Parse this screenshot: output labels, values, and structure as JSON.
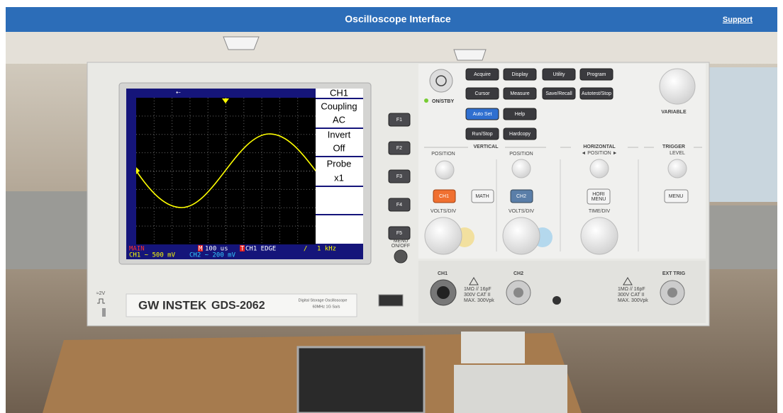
{
  "header": {
    "title": "Oscilloscope Interface",
    "link": "Support"
  },
  "screen": {
    "menu": [
      "CH1",
      "Coupling",
      "AC",
      "Invert",
      "Off",
      "Probe",
      "x1"
    ],
    "status": {
      "mode": "MAIN",
      "timebase_marker": "M",
      "timebase": "100 us",
      "trigger_marker": "T",
      "trigger": "CH1 EDGE",
      "slope": "/",
      "frequency": "1 kHz",
      "ch1": "CH1 ~ 500 mV",
      "ch2": "CH2 ~ 200 mV"
    }
  },
  "function_keys": [
    "F1",
    "F2",
    "F3",
    "F4",
    "F5"
  ],
  "menu_key": [
    "MENU",
    "ON/OFF"
  ],
  "brand": {
    "logo": "GW INSTEK",
    "model": "GDS-2062",
    "description": "Digital Storage Oscilloscope",
    "spec": "60MHz 1G Sa/s"
  },
  "probe_comp": "≈2V",
  "power": "ON/STBY",
  "buttons": [
    "Acquire",
    "Display",
    "Utility",
    "Program",
    "Cursor",
    "Measure",
    "Save/Recall",
    "Autotest/Stop",
    "Auto Set",
    "Help",
    "Run/Stop",
    "Hardcopy"
  ],
  "variable": "VARIABLE",
  "vertical": {
    "title": "VERTICAL",
    "position_left": "POSITION",
    "position_right": "POSITION",
    "ch1": "CH1",
    "math": "MATH",
    "ch2": "CH2",
    "volts_left": "VOLTS/DIV",
    "volts_right": "VOLTS/DIV"
  },
  "horizontal": {
    "title": "HORIZONTAL",
    "position": "◄ POSITION ►",
    "menu": [
      "HORI",
      "MENU"
    ],
    "time": "TIME/DIV"
  },
  "trigger": {
    "title": "TRIGGER",
    "level": "LEVEL",
    "menu": "MENU"
  },
  "inputs": {
    "ch1": "CH1",
    "ch2": "CH2",
    "ext": "EXT TRIG",
    "rating": [
      "1MΩ // 16pF",
      "300V  CAT II",
      "MAX. 300Vpk"
    ]
  }
}
